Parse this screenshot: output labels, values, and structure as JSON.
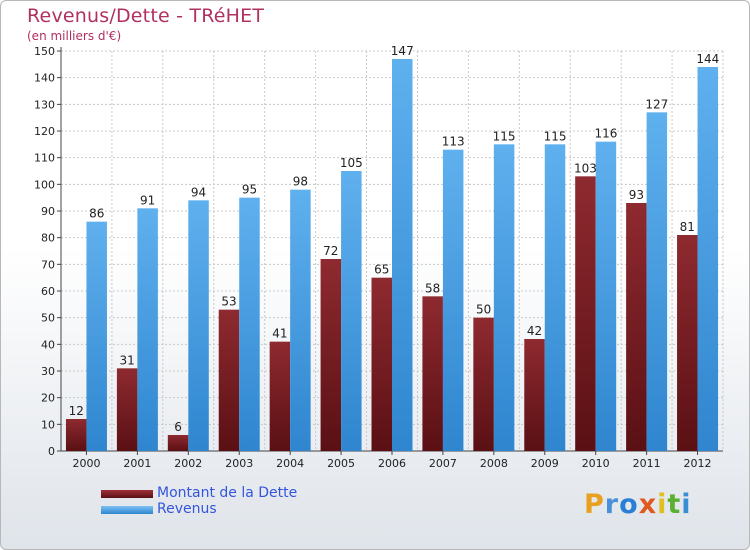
{
  "chart_data": {
    "type": "bar",
    "title": "Revenus/Dette - TRéHET",
    "subtitle": "(en milliers d'€)",
    "categories": [
      "2000",
      "2001",
      "2002",
      "2003",
      "2004",
      "2005",
      "2006",
      "2007",
      "2008",
      "2009",
      "2010",
      "2011",
      "2012"
    ],
    "series": [
      {
        "name": "Montant de la Dette",
        "color": "#7a1f24",
        "values": [
          12,
          31,
          6,
          53,
          41,
          72,
          65,
          58,
          50,
          42,
          103,
          93,
          81
        ]
      },
      {
        "name": "Revenus",
        "color": "#4fa3e6",
        "values": [
          86,
          91,
          94,
          95,
          98,
          105,
          147,
          113,
          115,
          115,
          116,
          127,
          144
        ]
      }
    ],
    "ylim": [
      0,
      150
    ],
    "yticks": [
      0,
      10,
      20,
      30,
      40,
      50,
      60,
      70,
      80,
      90,
      100,
      110,
      120,
      130,
      140,
      150
    ],
    "grid": true,
    "legend_position": "bottom-left"
  },
  "logo": {
    "text": "Proxiti",
    "letter_colors": [
      "#e8a020",
      "#4a90d9",
      "#2a7fd4",
      "#e05a20",
      "#e0c020",
      "#5bb030",
      "#3a8fd4"
    ]
  }
}
